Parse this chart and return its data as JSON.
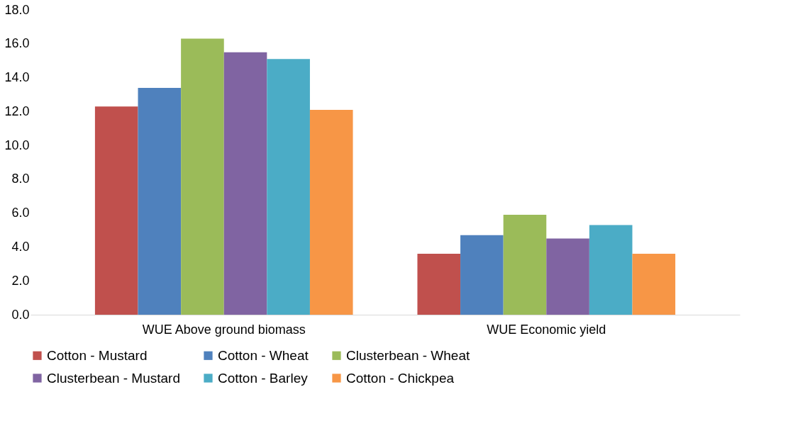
{
  "chart_data": {
    "type": "bar",
    "categories": [
      "WUE Above ground biomass",
      "WUE Economic yield"
    ],
    "series": [
      {
        "name": "Cotton - Mustard",
        "color": "#c0504d",
        "values": [
          12.3,
          3.6
        ]
      },
      {
        "name": "Cotton - Wheat",
        "color": "#4f81bd",
        "values": [
          13.4,
          4.7
        ]
      },
      {
        "name": "Clusterbean - Wheat",
        "color": "#9bbb59",
        "values": [
          16.3,
          5.9
        ]
      },
      {
        "name": "Clusterbean - Mustard",
        "color": "#8064a2",
        "values": [
          15.5,
          4.5
        ]
      },
      {
        "name": "Cotton - Barley",
        "color": "#4bacc6",
        "values": [
          15.1,
          5.3
        ]
      },
      {
        "name": "Cotton - Chickpea",
        "color": "#f79646",
        "values": [
          12.1,
          3.6
        ]
      }
    ],
    "ylim": [
      0,
      18
    ],
    "yticks": [
      {
        "value": 0,
        "label": "0.0"
      },
      {
        "value": 2,
        "label": "2.0"
      },
      {
        "value": 4,
        "label": "4.0"
      },
      {
        "value": 6,
        "label": "6.0"
      },
      {
        "value": 8,
        "label": "8.0"
      },
      {
        "value": 10,
        "label": "10.0"
      },
      {
        "value": 12,
        "label": "12.0"
      },
      {
        "value": 14,
        "label": "14.0"
      },
      {
        "value": 16,
        "label": "16.0"
      },
      {
        "value": 18,
        "label": "18.0"
      }
    ],
    "grid": false,
    "legend": "bottom"
  }
}
